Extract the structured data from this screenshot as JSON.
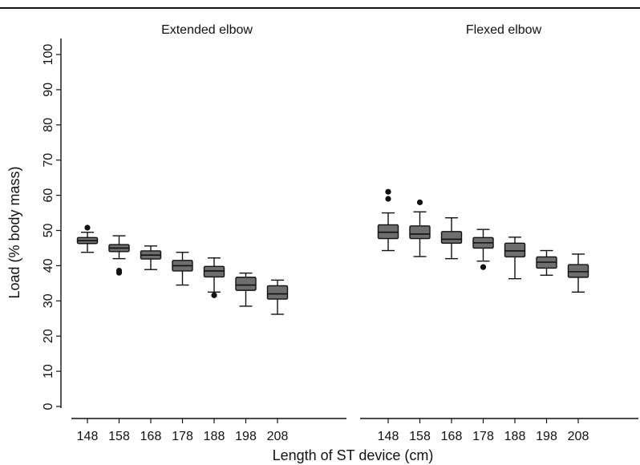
{
  "chart_data": {
    "type": "boxplot",
    "ylabel": "Load (% body mass)",
    "xlabel": "Length of ST device (cm)",
    "ylim": [
      0,
      100
    ],
    "yticks": [
      "0",
      "10",
      "20",
      "30",
      "40",
      "50",
      "60",
      "70",
      "80",
      "90",
      "100"
    ],
    "categories": [
      "148",
      "158",
      "168",
      "178",
      "188",
      "198",
      "208"
    ],
    "box_color": "#6e6e6e",
    "panels": [
      {
        "title": "Extended elbow",
        "boxes": [
          {
            "category": "148",
            "whisker_low": 43.8,
            "q1": 46.3,
            "median": 47.1,
            "q3": 48.0,
            "whisker_high": 49.5,
            "outliers": [
              50.8
            ]
          },
          {
            "category": "158",
            "whisker_low": 42.0,
            "q1": 44.0,
            "median": 45.0,
            "q3": 46.0,
            "whisker_high": 48.5,
            "outliers": [
              38.6,
              38.0
            ]
          },
          {
            "category": "168",
            "whisker_low": 38.9,
            "q1": 41.9,
            "median": 43.0,
            "q3": 44.2,
            "whisker_high": 45.6,
            "outliers": []
          },
          {
            "category": "178",
            "whisker_low": 34.5,
            "q1": 38.5,
            "median": 40.0,
            "q3": 41.5,
            "whisker_high": 43.8,
            "outliers": []
          },
          {
            "category": "188",
            "whisker_low": 32.5,
            "q1": 36.8,
            "median": 38.5,
            "q3": 39.8,
            "whisker_high": 42.2,
            "outliers": [
              31.6
            ]
          },
          {
            "category": "198",
            "whisker_low": 28.5,
            "q1": 33.0,
            "median": 34.5,
            "q3": 36.7,
            "whisker_high": 37.9,
            "outliers": []
          },
          {
            "category": "208",
            "whisker_low": 26.2,
            "q1": 30.5,
            "median": 32.0,
            "q3": 34.3,
            "whisker_high": 35.9,
            "outliers": []
          }
        ]
      },
      {
        "title": "Flexed elbow",
        "boxes": [
          {
            "category": "148",
            "whisker_low": 44.3,
            "q1": 47.7,
            "median": 49.5,
            "q3": 51.6,
            "whisker_high": 55.0,
            "outliers": [
              61.0,
              59.0
            ]
          },
          {
            "category": "158",
            "whisker_low": 42.6,
            "q1": 47.7,
            "median": 49.0,
            "q3": 51.3,
            "whisker_high": 55.3,
            "outliers": [
              58.0
            ]
          },
          {
            "category": "168",
            "whisker_low": 42.0,
            "q1": 46.4,
            "median": 47.5,
            "q3": 49.7,
            "whisker_high": 53.6,
            "outliers": []
          },
          {
            "category": "178",
            "whisker_low": 41.3,
            "q1": 45.0,
            "median": 46.5,
            "q3": 48.0,
            "whisker_high": 50.3,
            "outliers": [
              39.6
            ]
          },
          {
            "category": "188",
            "whisker_low": 36.3,
            "q1": 42.5,
            "median": 44.2,
            "q3": 46.4,
            "whisker_high": 48.1,
            "outliers": []
          },
          {
            "category": "198",
            "whisker_low": 37.3,
            "q1": 39.3,
            "median": 41.0,
            "q3": 42.5,
            "whisker_high": 44.3,
            "outliers": []
          },
          {
            "category": "208",
            "whisker_low": 32.5,
            "q1": 36.7,
            "median": 38.3,
            "q3": 40.3,
            "whisker_high": 43.3,
            "outliers": []
          }
        ]
      }
    ]
  }
}
